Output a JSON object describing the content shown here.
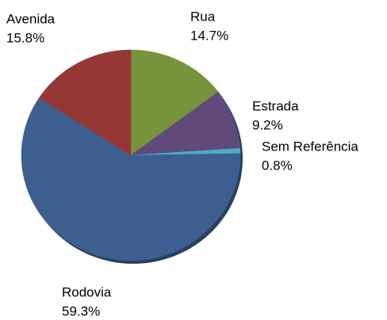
{
  "chart_data": {
    "type": "pie",
    "categories": [
      "Rua",
      "Estrada",
      "Sem Referência",
      "Rodovia",
      "Avenida"
    ],
    "values": [
      14.7,
      9.2,
      0.8,
      59.3,
      15.8
    ],
    "value_labels": [
      "14.7%",
      "9.2%",
      "0.8%",
      "59.3%",
      "15.8%"
    ],
    "colors": [
      "#77933c",
      "#604a7b",
      "#4bacc6",
      "#3d5f8f",
      "#953735"
    ]
  }
}
